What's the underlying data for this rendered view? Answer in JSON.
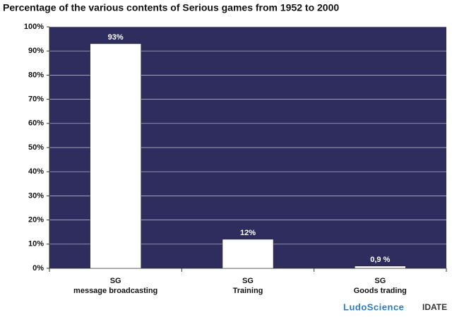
{
  "chart_data": {
    "type": "bar",
    "title": "Percentage of the various contents of Serious games from 1952 to 2000",
    "categories": [
      [
        "SG",
        "message broadcasting"
      ],
      [
        "SG",
        "Training"
      ],
      [
        "SG",
        "Goods trading"
      ]
    ],
    "values": [
      93,
      12,
      0.9
    ],
    "value_labels": [
      "93%",
      "12%",
      "0,9 %"
    ],
    "color": "#ffffff",
    "background": "#2f2d5e",
    "ylim": [
      0,
      100
    ],
    "yticks": [
      {
        "value": 0,
        "label": "0%"
      },
      {
        "value": 10,
        "label": "10%"
      },
      {
        "value": 20,
        "label": "20%"
      },
      {
        "value": 30,
        "label": "30%"
      },
      {
        "value": 40,
        "label": "40%"
      },
      {
        "value": 50,
        "label": "50%"
      },
      {
        "value": 60,
        "label": "60%"
      },
      {
        "value": 70,
        "label": "70%"
      },
      {
        "value": 80,
        "label": "80%"
      },
      {
        "value": 90,
        "label": "90%"
      },
      {
        "value": 100,
        "label": "100%"
      }
    ],
    "grid": true,
    "logos": [
      "LudoScience",
      "IDATE"
    ]
  }
}
